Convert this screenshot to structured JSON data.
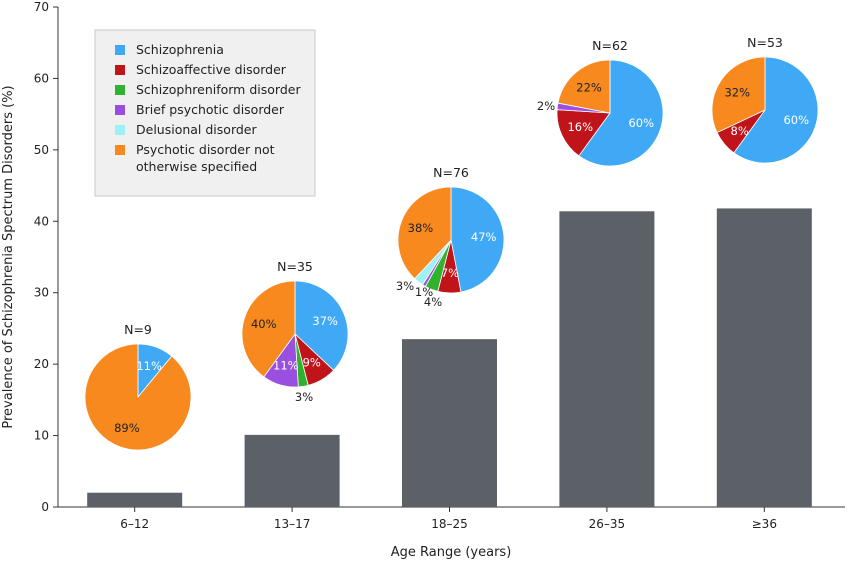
{
  "chart_data": {
    "type": "bar",
    "title": "",
    "xlabel": "Age Range (years)",
    "ylabel": "Prevalence of Schizophrenia Spectrum Disorders (%)",
    "ylim": [
      0,
      70
    ],
    "yticks": [
      0,
      10,
      20,
      30,
      40,
      50,
      60,
      70
    ],
    "grid": false,
    "bar_color": "#5b6166",
    "categories": [
      "6–12",
      "13–17",
      "18–25",
      "26–35",
      "≥36"
    ],
    "values": [
      2,
      10.1,
      23.5,
      41.4,
      41.8
    ],
    "legend": {
      "placement": "top-left",
      "entries": [
        {
          "label": "Schizophrenia",
          "color": "#3fa9f5"
        },
        {
          "label": "Schizoaffective disorder",
          "color": "#c0141b"
        },
        {
          "label": "Schizophreniform disorder",
          "color": "#2fb32f"
        },
        {
          "label": "Brief psychotic disorder",
          "color": "#9a4fe0"
        },
        {
          "label": "Delusional disorder",
          "color": "#9ff0f5"
        },
        {
          "label": "Psychotic disorder not\notherwise specified",
          "color": "#f7891f"
        }
      ]
    },
    "pies": [
      {
        "category": "6–12",
        "n_label": "N=9",
        "slices": [
          {
            "disorder": 0,
            "value": 11,
            "label": "11%",
            "inside": true,
            "text_color": "#ffffff"
          },
          {
            "disorder": 5,
            "value": 89,
            "label": "89%",
            "inside": true,
            "text_color": "#222222"
          }
        ]
      },
      {
        "category": "13–17",
        "n_label": "N=35",
        "slices": [
          {
            "disorder": 0,
            "value": 37,
            "label": "37%",
            "inside": true,
            "text_color": "#ffffff"
          },
          {
            "disorder": 1,
            "value": 9,
            "label": "9%",
            "inside": true,
            "text_color": "#ffffff"
          },
          {
            "disorder": 2,
            "value": 3,
            "label": "3%",
            "inside": false,
            "text_color": "#222222"
          },
          {
            "disorder": 3,
            "value": 11,
            "label": "11%",
            "inside": true,
            "text_color": "#ffffff"
          },
          {
            "disorder": 5,
            "value": 40,
            "label": "40%",
            "inside": true,
            "text_color": "#222222"
          }
        ]
      },
      {
        "category": "18–25",
        "n_label": "N=76",
        "slices": [
          {
            "disorder": 0,
            "value": 47,
            "label": "47%",
            "inside": true,
            "text_color": "#ffffff"
          },
          {
            "disorder": 1,
            "value": 7,
            "label": "7%",
            "inside": true,
            "text_color": "#ffffff"
          },
          {
            "disorder": 2,
            "value": 4,
            "label": "4%",
            "inside": false,
            "text_color": "#222222"
          },
          {
            "disorder": 3,
            "value": 1,
            "label": "1%",
            "inside": false,
            "text_color": "#222222"
          },
          {
            "disorder": 4,
            "value": 3,
            "label": "3%",
            "inside": false,
            "text_color": "#222222"
          },
          {
            "disorder": 5,
            "value": 38,
            "label": "38%",
            "inside": true,
            "text_color": "#222222"
          }
        ]
      },
      {
        "category": "26–35",
        "n_label": "N=62",
        "slices": [
          {
            "disorder": 0,
            "value": 60,
            "label": "60%",
            "inside": true,
            "text_color": "#ffffff"
          },
          {
            "disorder": 1,
            "value": 16,
            "label": "16%",
            "inside": true,
            "text_color": "#ffffff"
          },
          {
            "disorder": 3,
            "value": 2,
            "label": "2%",
            "inside": false,
            "text_color": "#222222"
          },
          {
            "disorder": 5,
            "value": 22,
            "label": "22%",
            "inside": true,
            "text_color": "#222222"
          }
        ]
      },
      {
        "category": "≥36",
        "n_label": "N=53",
        "slices": [
          {
            "disorder": 0,
            "value": 60,
            "label": "60%",
            "inside": true,
            "text_color": "#ffffff"
          },
          {
            "disorder": 1,
            "value": 8,
            "label": "8%",
            "inside": true,
            "text_color": "#ffffff"
          },
          {
            "disorder": 5,
            "value": 32,
            "label": "32%",
            "inside": true,
            "text_color": "#222222"
          }
        ]
      }
    ]
  }
}
